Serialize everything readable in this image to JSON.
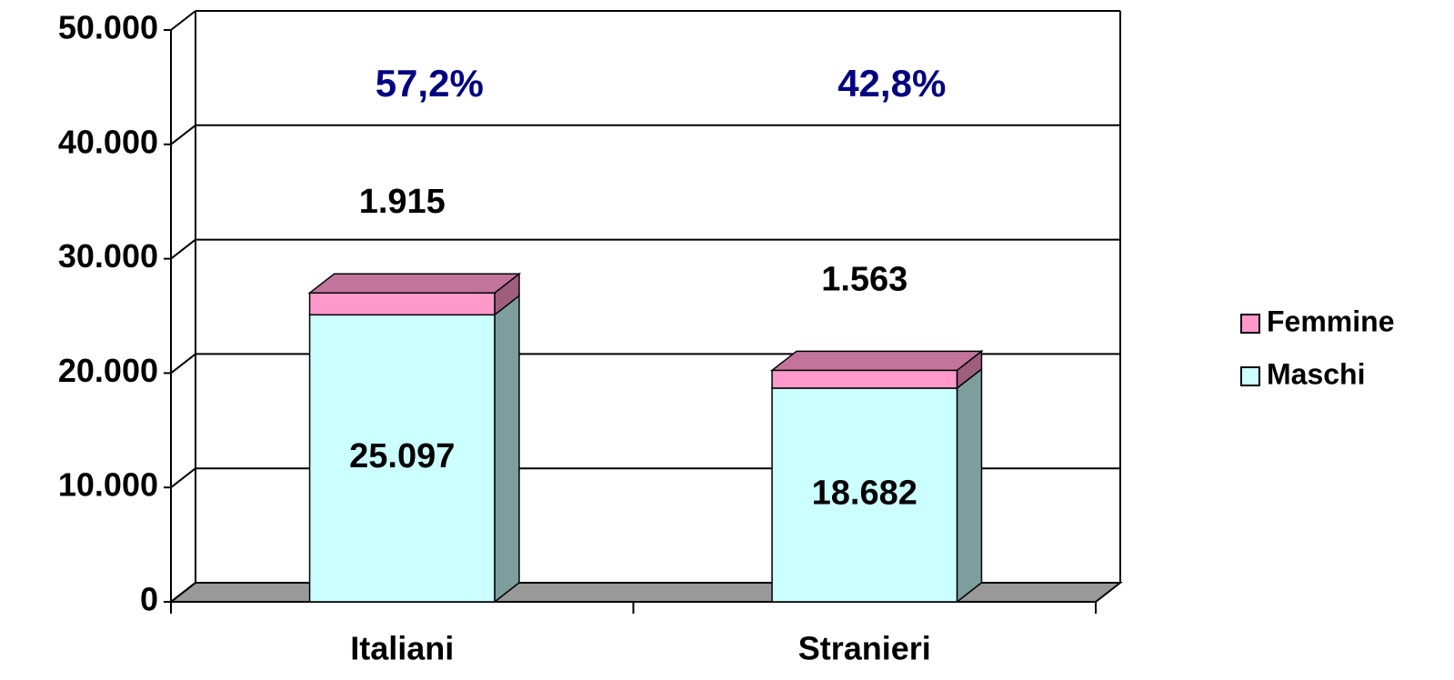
{
  "chart_data": {
    "type": "bar3d_stacked",
    "categories": [
      "Italiani",
      "Stranieri"
    ],
    "series": [
      {
        "name": "Maschi",
        "color": "#ccffff",
        "values": [
          25097,
          18682
        ],
        "value_labels": [
          "25.097",
          "18.682"
        ]
      },
      {
        "name": "Femmine",
        "color": "#ff99cc",
        "values": [
          1915,
          1563
        ],
        "value_labels": [
          "1.915",
          "1.563"
        ]
      }
    ],
    "annotations": [
      "57,2%",
      "42,8%"
    ],
    "ylim": [
      0,
      50000
    ],
    "yticks": [
      0,
      {
        "value": 10000,
        "label": "10.000"
      },
      {
        "value": 20000,
        "label": "20.000"
      },
      {
        "value": 30000,
        "label": "30.000"
      },
      {
        "value": 40000,
        "label": "40.000"
      },
      {
        "value": 50000,
        "label": "50.000"
      }
    ],
    "grid": true,
    "legend": "right"
  }
}
